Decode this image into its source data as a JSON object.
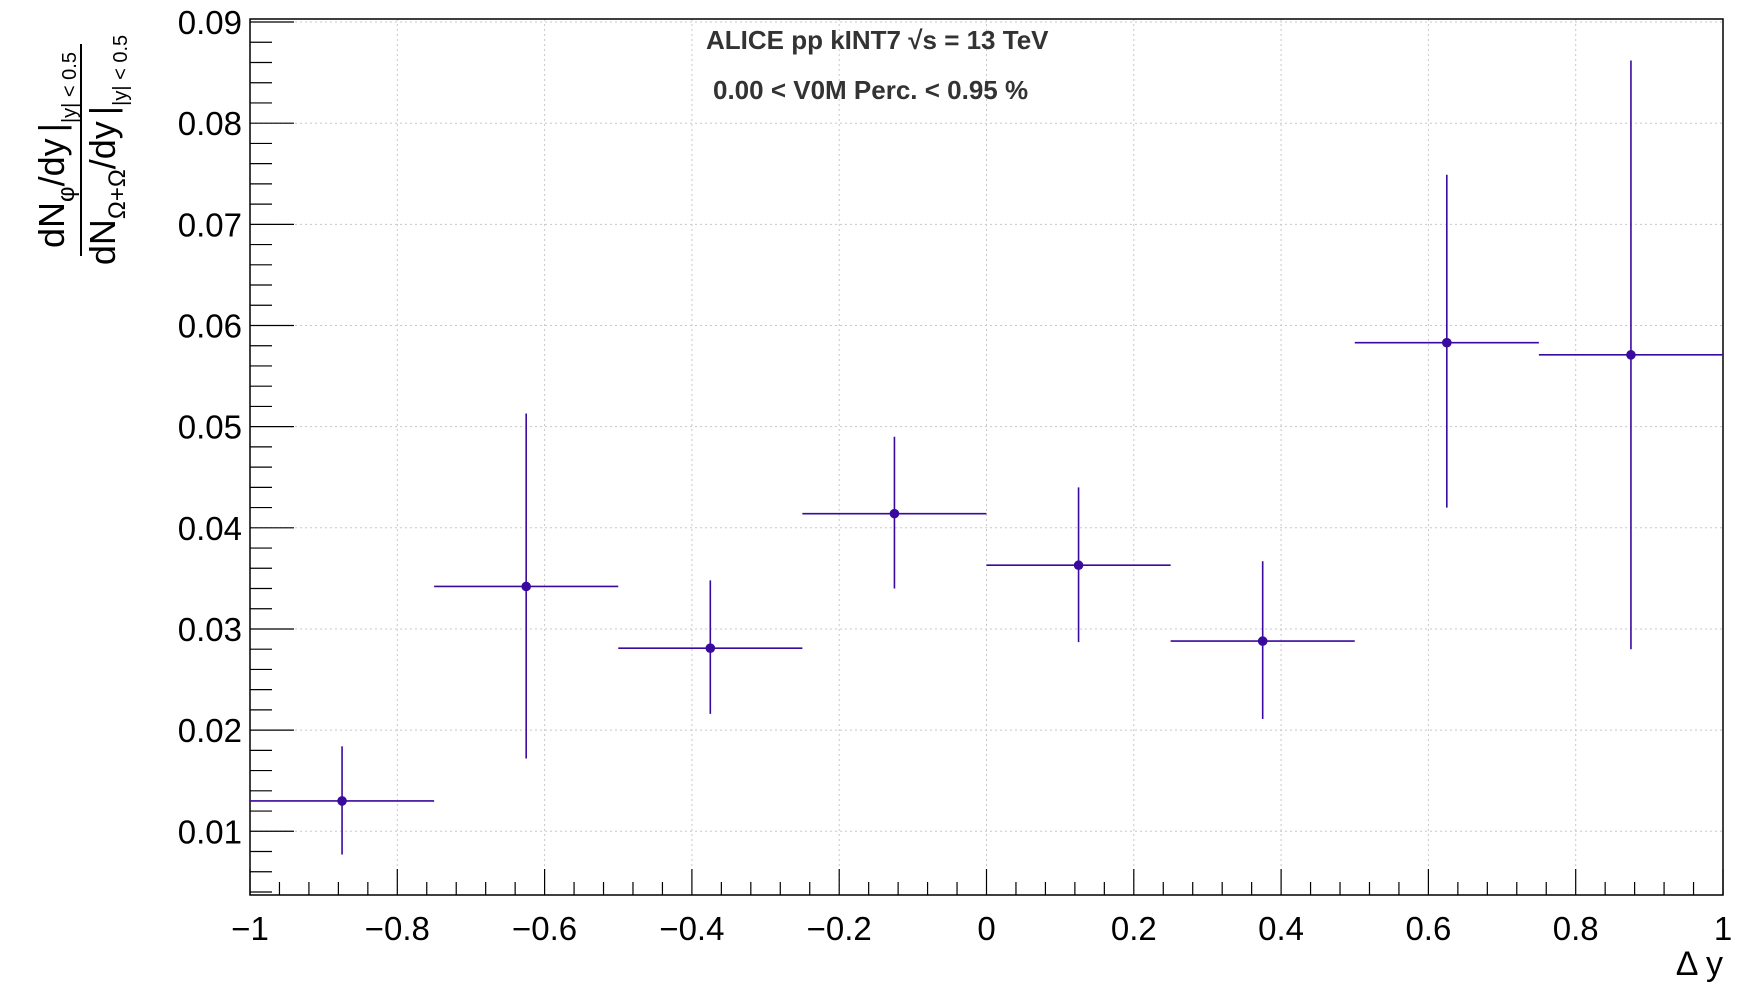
{
  "chart_data": {
    "type": "scatter",
    "title": "",
    "xlabel": "Δ y",
    "ylabel": {
      "num_main": "dN",
      "num_sub": "φ",
      "num_tail": "/dy",
      "num_range": "|y| < 0.5",
      "den_main": "dN",
      "den_sub": "Ω+Ω",
      "den_tail": "/dy",
      "den_range": "|y| < 0.5"
    },
    "xlim": [
      -1,
      1
    ],
    "ylim": [
      0.0037,
      0.0903
    ],
    "grid": true,
    "annotations": [
      "ALICE pp kINT7  √s = 13 TeV",
      "0.00 < V0M Perc. < 0.95 %"
    ],
    "x_ticks": [
      -1,
      -0.8,
      -0.6,
      -0.4,
      -0.2,
      0,
      0.2,
      0.4,
      0.6,
      0.8,
      1
    ],
    "x_tick_labels": [
      "−1",
      "−0.8",
      "−0.6",
      "−0.4",
      "−0.2",
      "0",
      "0.2",
      "0.4",
      "0.6",
      "0.8",
      "1"
    ],
    "y_ticks": [
      0.01,
      0.02,
      0.03,
      0.04,
      0.05,
      0.06,
      0.07,
      0.08,
      0.09
    ],
    "y_tick_labels": [
      "0.01",
      "0.02",
      "0.03",
      "0.04",
      "0.05",
      "0.06",
      "0.07",
      "0.08",
      "0.09"
    ],
    "color": "#3a0a9e",
    "series": [
      {
        "x": [
          -0.875,
          -0.625,
          -0.375,
          -0.125,
          0.125,
          0.375,
          0.625,
          0.875
        ],
        "y": [
          0.013,
          0.0342,
          0.0281,
          0.0414,
          0.0363,
          0.0288,
          0.0583,
          0.0571
        ],
        "xerr": [
          0.125,
          0.125,
          0.125,
          0.125,
          0.125,
          0.125,
          0.125,
          0.125
        ],
        "y_low": [
          0.0077,
          0.0172,
          0.0216,
          0.034,
          0.0287,
          0.0211,
          0.042,
          0.028
        ],
        "y_high": [
          0.0184,
          0.0513,
          0.0348,
          0.049,
          0.044,
          0.0367,
          0.0749,
          0.0862
        ]
      }
    ]
  }
}
